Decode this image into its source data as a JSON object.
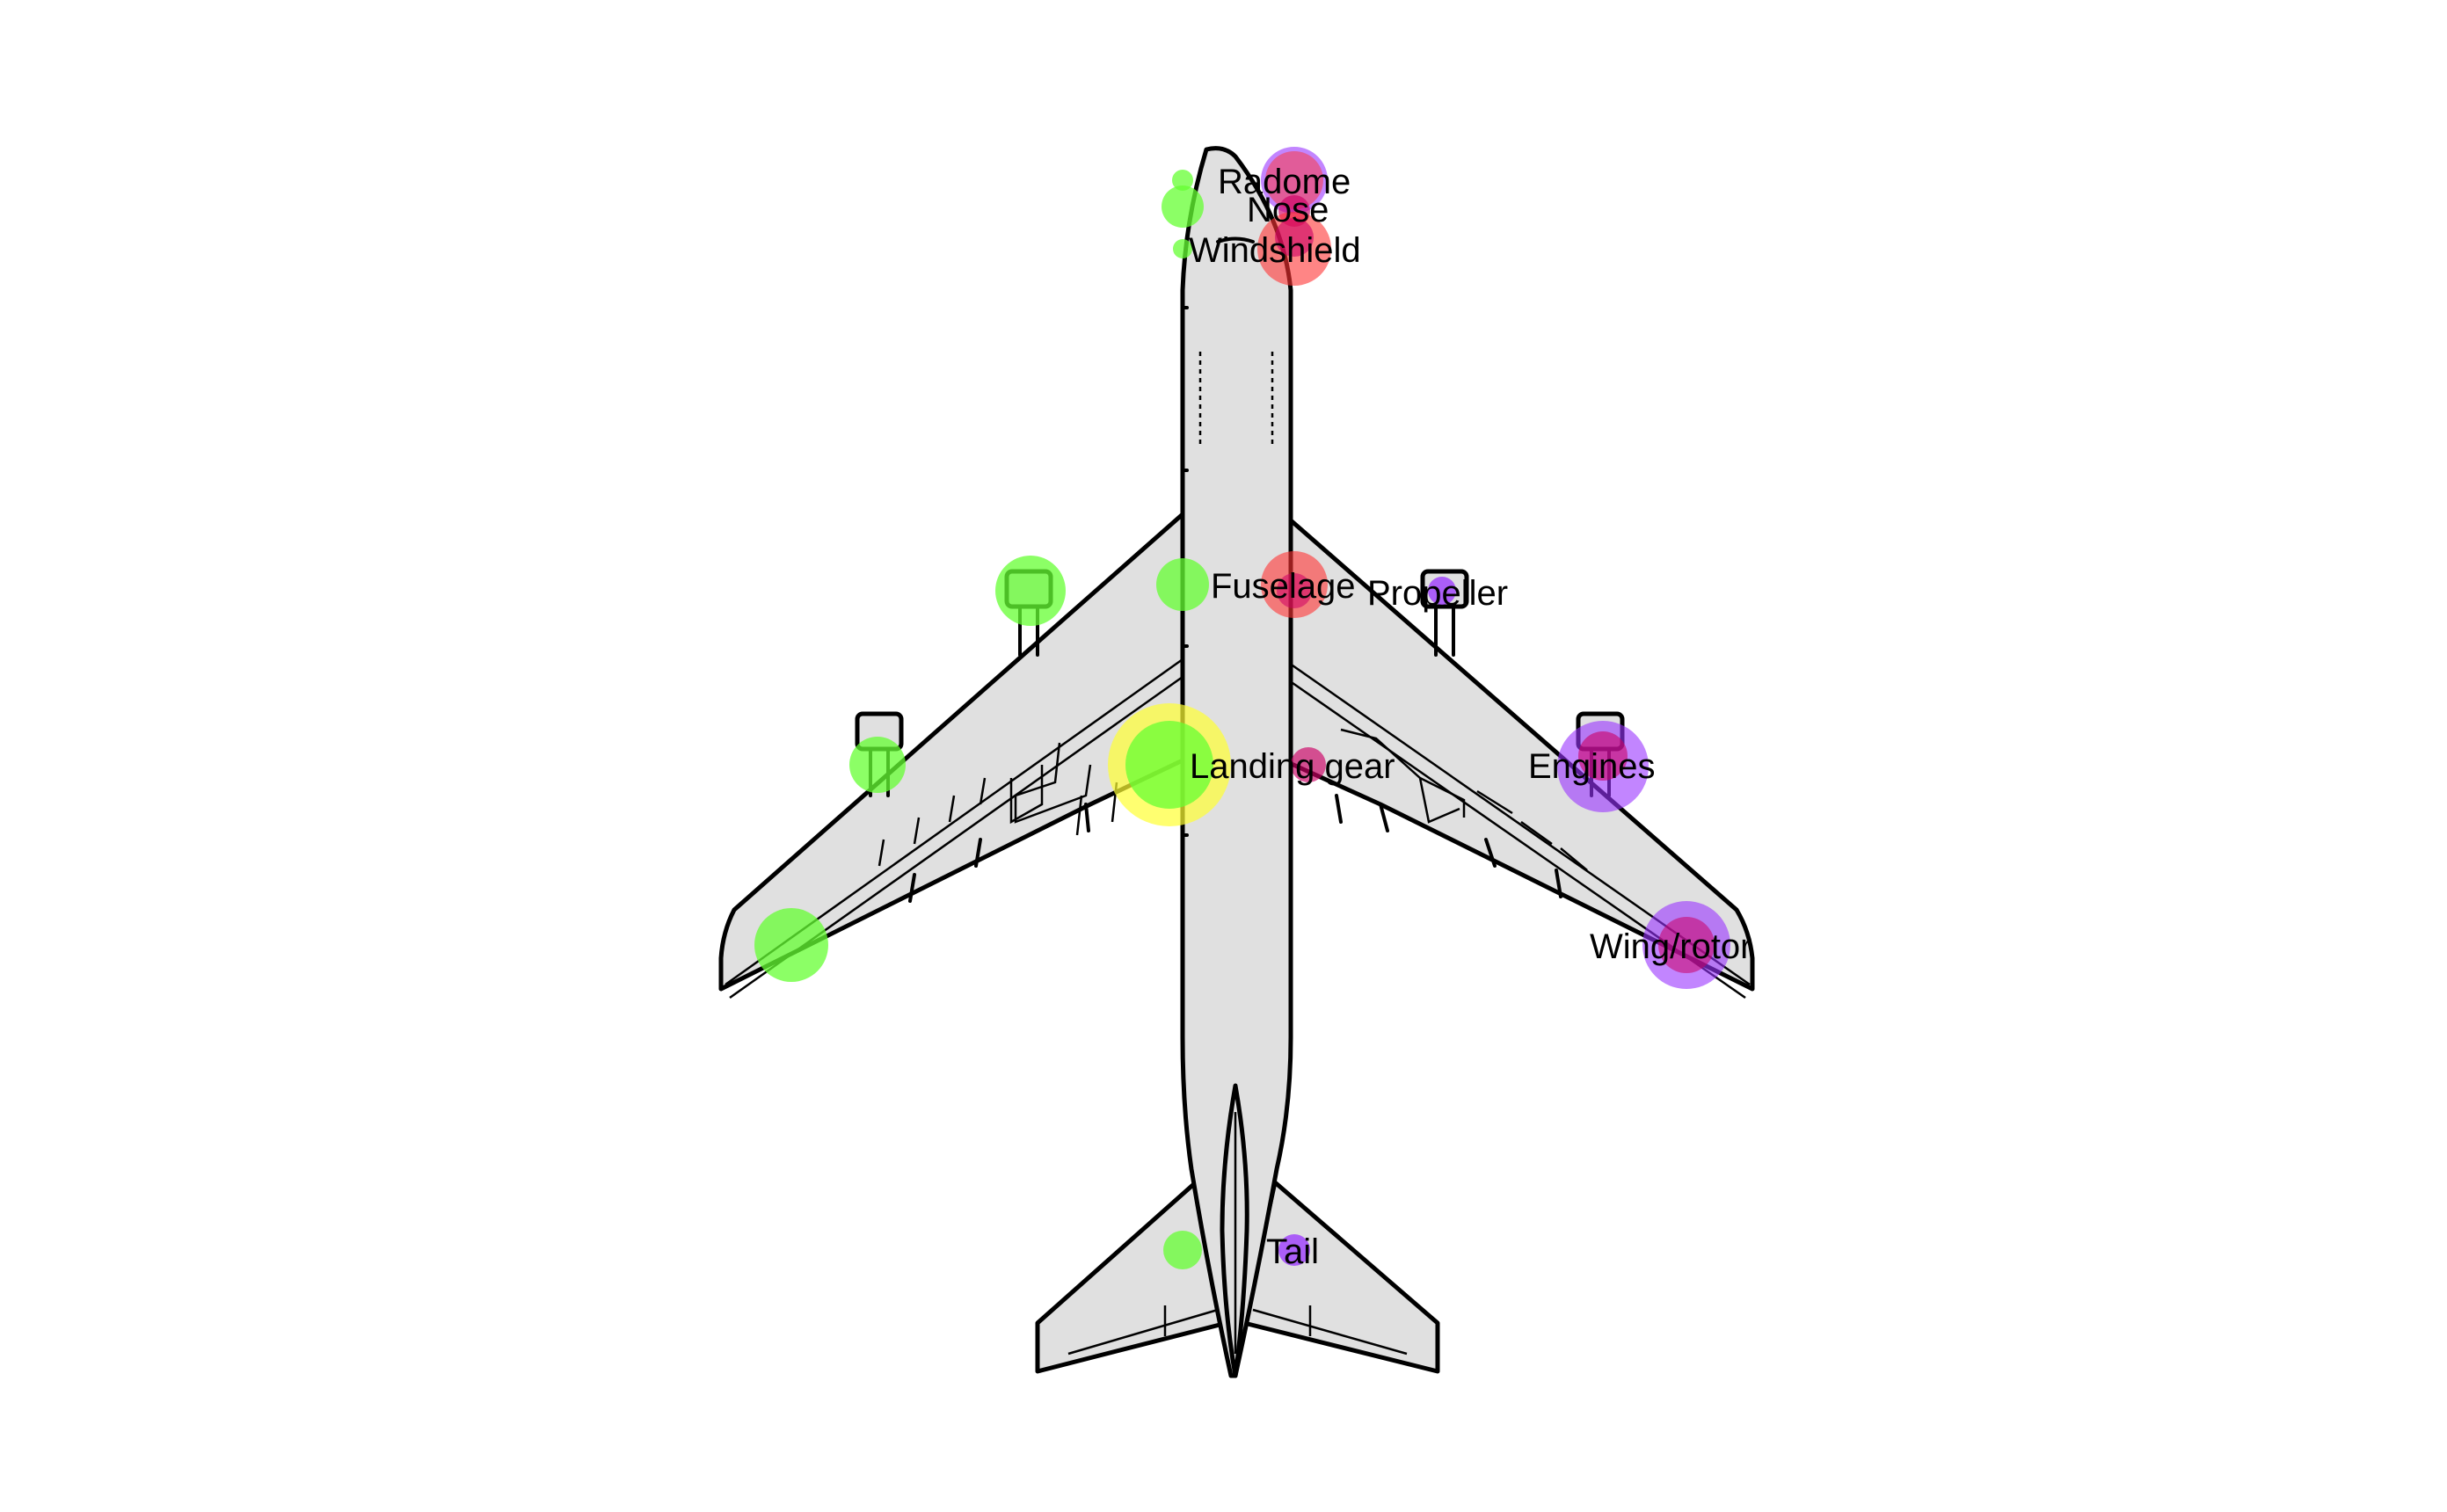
{
  "colors": {
    "background": "#ffffff",
    "airframe_fill": "#e0e0e0",
    "airframe_stroke": "#000000",
    "green": "#66ff33",
    "yellow": "#ffff33",
    "red": "#ff3333",
    "magenta": "#cc0066",
    "purple": "#9933ff"
  },
  "labels": {
    "radome": "Radome",
    "nose": "Nose",
    "windshield": "Windshield",
    "fuselage": "Fuselage",
    "propeller": "Propeller",
    "landing_gear": "Landing gear",
    "engines": "Engines",
    "wing_rotor": "Wing/rotor",
    "tail": "Tail"
  }
}
